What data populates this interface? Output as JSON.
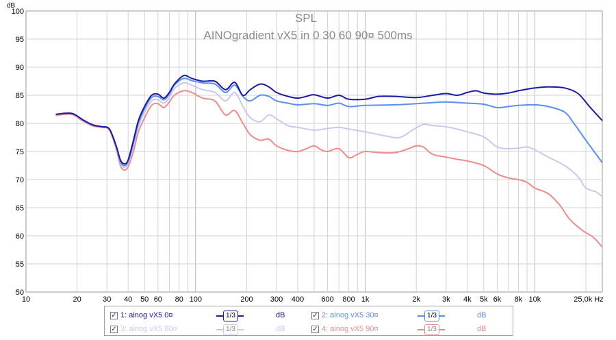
{
  "chart_data": {
    "type": "line",
    "title": "SPL",
    "subtitle": "AINOgradient vX5 in 0 30 60 90¤ 500ms",
    "ylabel": "dB",
    "xlabel": "Hz",
    "x_scale": "log",
    "xlim": [
      10,
      25000
    ],
    "ylim": [
      50,
      100
    ],
    "grid": true,
    "x_ticks": [
      {
        "v": 10,
        "label": "10"
      },
      {
        "v": 20,
        "label": "20"
      },
      {
        "v": 30,
        "label": "30"
      },
      {
        "v": 40,
        "label": "40"
      },
      {
        "v": 50,
        "label": "50"
      },
      {
        "v": 60,
        "label": "60"
      },
      {
        "v": 80,
        "label": "80"
      },
      {
        "v": 100,
        "label": "100"
      },
      {
        "v": 200,
        "label": "200"
      },
      {
        "v": 300,
        "label": "300"
      },
      {
        "v": 400,
        "label": "400"
      },
      {
        "v": 600,
        "label": "600"
      },
      {
        "v": 800,
        "label": "800"
      },
      {
        "v": 1000,
        "label": "1k"
      },
      {
        "v": 2000,
        "label": "2k"
      },
      {
        "v": 3000,
        "label": "3k"
      },
      {
        "v": 4000,
        "label": "4k"
      },
      {
        "v": 5000,
        "label": "5k"
      },
      {
        "v": 6000,
        "label": "6k"
      },
      {
        "v": 8000,
        "label": "8k"
      },
      {
        "v": 10000,
        "label": "10k"
      },
      {
        "v": 25000,
        "label": "25,0k Hz"
      }
    ],
    "y_ticks": [
      50,
      55,
      60,
      65,
      70,
      75,
      80,
      85,
      90,
      95,
      100
    ],
    "series": [
      {
        "name": "1: ainog vX5 0¤",
        "color": "#1a1aa6",
        "points": [
          [
            15,
            81.6
          ],
          [
            17,
            81.8
          ],
          [
            19,
            81.7
          ],
          [
            22,
            80.5
          ],
          [
            25,
            79.7
          ],
          [
            28,
            79.4
          ],
          [
            31,
            79.0
          ],
          [
            34,
            76
          ],
          [
            36,
            73.5
          ],
          [
            38,
            72.8
          ],
          [
            40,
            73.5
          ],
          [
            43,
            77
          ],
          [
            46,
            80.5
          ],
          [
            50,
            83
          ],
          [
            55,
            85
          ],
          [
            60,
            85.2
          ],
          [
            65,
            84.5
          ],
          [
            70,
            85.5
          ],
          [
            75,
            87
          ],
          [
            85,
            88.5
          ],
          [
            95,
            88
          ],
          [
            110,
            87.5
          ],
          [
            130,
            87.5
          ],
          [
            150,
            86
          ],
          [
            170,
            87.3
          ],
          [
            190,
            85
          ],
          [
            210,
            86
          ],
          [
            240,
            87
          ],
          [
            270,
            86.5
          ],
          [
            300,
            85.5
          ],
          [
            350,
            84.8
          ],
          [
            400,
            84.5
          ],
          [
            450,
            84.8
          ],
          [
            500,
            85.1
          ],
          [
            600,
            84.5
          ],
          [
            700,
            85
          ],
          [
            800,
            84.3
          ],
          [
            1000,
            84.3
          ],
          [
            1200,
            84.8
          ],
          [
            1500,
            84.8
          ],
          [
            2000,
            84.6
          ],
          [
            2500,
            85.0
          ],
          [
            3000,
            85.3
          ],
          [
            3500,
            85.0
          ],
          [
            4000,
            85.5
          ],
          [
            4500,
            85.8
          ],
          [
            5000,
            85.4
          ],
          [
            6000,
            85.2
          ],
          [
            7000,
            85.4
          ],
          [
            8000,
            85.8
          ],
          [
            10000,
            86.3
          ],
          [
            12000,
            86.5
          ],
          [
            15000,
            86.3
          ],
          [
            18000,
            85.3
          ],
          [
            21000,
            83
          ],
          [
            25000,
            80.5
          ]
        ]
      },
      {
        "name": "2: ainog vX5 30¤",
        "color": "#5a8ff0",
        "points": [
          [
            15,
            81.6
          ],
          [
            17,
            81.8
          ],
          [
            19,
            81.7
          ],
          [
            22,
            80.5
          ],
          [
            25,
            79.7
          ],
          [
            28,
            79.4
          ],
          [
            31,
            79.0
          ],
          [
            34,
            76
          ],
          [
            36,
            73.2
          ],
          [
            38,
            72.5
          ],
          [
            40,
            73.2
          ],
          [
            43,
            76.5
          ],
          [
            46,
            80
          ],
          [
            50,
            82.6
          ],
          [
            55,
            84.6
          ],
          [
            60,
            84.8
          ],
          [
            65,
            84.2
          ],
          [
            70,
            85.2
          ],
          [
            75,
            86.8
          ],
          [
            85,
            88.0
          ],
          [
            95,
            87.6
          ],
          [
            110,
            87.2
          ],
          [
            130,
            87.0
          ],
          [
            150,
            85.5
          ],
          [
            170,
            86.8
          ],
          [
            190,
            84.8
          ],
          [
            210,
            84.0
          ],
          [
            240,
            85.0
          ],
          [
            270,
            84.8
          ],
          [
            300,
            84.0
          ],
          [
            350,
            83.6
          ],
          [
            400,
            83.3
          ],
          [
            500,
            83.5
          ],
          [
            600,
            83.2
          ],
          [
            700,
            83.6
          ],
          [
            800,
            83.0
          ],
          [
            1000,
            83.2
          ],
          [
            1500,
            83.3
          ],
          [
            2000,
            83.5
          ],
          [
            2500,
            83.7
          ],
          [
            3000,
            83.8
          ],
          [
            4000,
            83.6
          ],
          [
            5000,
            83.4
          ],
          [
            6000,
            82.8
          ],
          [
            7000,
            83.0
          ],
          [
            8000,
            83.2
          ],
          [
            10000,
            83.3
          ],
          [
            12000,
            83.0
          ],
          [
            15000,
            82.0
          ],
          [
            17000,
            80.0
          ],
          [
            20000,
            77
          ],
          [
            25000,
            73
          ]
        ]
      },
      {
        "name": "3: ainog vX5 60¤",
        "color": "#c8c8f0",
        "points": [
          [
            15,
            81.6
          ],
          [
            17,
            81.8
          ],
          [
            19,
            81.7
          ],
          [
            22,
            80.5
          ],
          [
            25,
            79.7
          ],
          [
            28,
            79.4
          ],
          [
            31,
            79.0
          ],
          [
            34,
            76
          ],
          [
            36,
            73
          ],
          [
            38,
            72.2
          ],
          [
            40,
            73
          ],
          [
            43,
            76
          ],
          [
            46,
            79.5
          ],
          [
            50,
            82
          ],
          [
            55,
            84
          ],
          [
            60,
            84.2
          ],
          [
            65,
            83.6
          ],
          [
            70,
            84.6
          ],
          [
            75,
            86.2
          ],
          [
            85,
            87.2
          ],
          [
            95,
            86.8
          ],
          [
            110,
            86.0
          ],
          [
            130,
            85.5
          ],
          [
            150,
            84.0
          ],
          [
            170,
            85.5
          ],
          [
            190,
            83.0
          ],
          [
            210,
            81.0
          ],
          [
            240,
            80.3
          ],
          [
            270,
            81.5
          ],
          [
            300,
            80.8
          ],
          [
            350,
            79.6
          ],
          [
            400,
            79.3
          ],
          [
            500,
            78.8
          ],
          [
            600,
            79.1
          ],
          [
            700,
            79.3
          ],
          [
            800,
            79.0
          ],
          [
            1000,
            78.5
          ],
          [
            1300,
            77.8
          ],
          [
            1600,
            77.5
          ],
          [
            1900,
            78.8
          ],
          [
            2200,
            79.8
          ],
          [
            2500,
            79.6
          ],
          [
            3000,
            79.4
          ],
          [
            4000,
            78.5
          ],
          [
            5000,
            77.6
          ],
          [
            6000,
            75.8
          ],
          [
            7000,
            75.5
          ],
          [
            8000,
            75.6
          ],
          [
            9000,
            75.8
          ],
          [
            10000,
            75.3
          ],
          [
            12000,
            74.0
          ],
          [
            15000,
            72.5
          ],
          [
            18000,
            70.5
          ],
          [
            20000,
            68.5
          ],
          [
            23000,
            67.8
          ],
          [
            25000,
            67
          ]
        ]
      },
      {
        "name": "4: ainog vX5 90¤",
        "color": "#f08a8a",
        "points": [
          [
            15,
            81.4
          ],
          [
            17,
            81.6
          ],
          [
            19,
            81.5
          ],
          [
            22,
            80.3
          ],
          [
            25,
            79.5
          ],
          [
            28,
            79.3
          ],
          [
            31,
            78.8
          ],
          [
            34,
            75.5
          ],
          [
            36,
            72.5
          ],
          [
            38,
            71.7
          ],
          [
            40,
            72.3
          ],
          [
            43,
            75
          ],
          [
            46,
            78.5
          ],
          [
            50,
            81
          ],
          [
            55,
            83.2
          ],
          [
            60,
            83.5
          ],
          [
            65,
            82.8
          ],
          [
            70,
            83.8
          ],
          [
            75,
            85.0
          ],
          [
            85,
            85.8
          ],
          [
            95,
            85.5
          ],
          [
            110,
            84.5
          ],
          [
            130,
            84.0
          ],
          [
            150,
            81.5
          ],
          [
            170,
            82.3
          ],
          [
            190,
            80.0
          ],
          [
            210,
            78.0
          ],
          [
            240,
            77.0
          ],
          [
            270,
            77.2
          ],
          [
            300,
            76.0
          ],
          [
            350,
            75.2
          ],
          [
            400,
            75.0
          ],
          [
            450,
            75.5
          ],
          [
            500,
            76.0
          ],
          [
            550,
            75.3
          ],
          [
            600,
            75.0
          ],
          [
            700,
            75.5
          ],
          [
            800,
            73.9
          ],
          [
            900,
            74.5
          ],
          [
            1000,
            75.0
          ],
          [
            1200,
            74.8
          ],
          [
            1500,
            74.8
          ],
          [
            1800,
            75.5
          ],
          [
            2000,
            76.0
          ],
          [
            2200,
            75.8
          ],
          [
            2500,
            74.5
          ],
          [
            3000,
            74.0
          ],
          [
            3500,
            73.6
          ],
          [
            4000,
            73.3
          ],
          [
            5000,
            72.5
          ],
          [
            6000,
            71.0
          ],
          [
            7000,
            70.3
          ],
          [
            8000,
            70.0
          ],
          [
            9000,
            69.5
          ],
          [
            10000,
            68.5
          ],
          [
            12000,
            67.5
          ],
          [
            14000,
            65.5
          ],
          [
            16000,
            63.0
          ],
          [
            19000,
            61.0
          ],
          [
            22000,
            59.8
          ],
          [
            25000,
            58
          ]
        ]
      }
    ]
  },
  "legend": {
    "items": [
      {
        "name": "1: ainog vX5 0¤",
        "smoothing": "1/3",
        "unit": "dB",
        "color": "#1a1aa6",
        "checked": true
      },
      {
        "name": "2: ainog vX5 30¤",
        "smoothing": "1/3",
        "unit": "dB",
        "color": "#5a8ff0",
        "checked": true
      },
      {
        "name": "3: ainog vX5 60¤",
        "smoothing": "1/3",
        "unit": "dB",
        "color": "#c8c8f0",
        "checked": true
      },
      {
        "name": "4: ainog vX5 90¤",
        "smoothing": "1/3",
        "unit": "dB",
        "color": "#f08a8a",
        "checked": true
      }
    ]
  }
}
